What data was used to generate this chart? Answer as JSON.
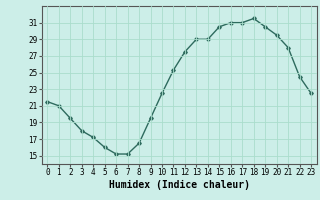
{
  "xlabel": "Humidex (Indice chaleur)",
  "x": [
    0,
    1,
    2,
    3,
    4,
    5,
    6,
    7,
    8,
    9,
    10,
    11,
    12,
    13,
    14,
    15,
    16,
    17,
    18,
    19,
    20,
    21,
    22,
    23
  ],
  "y": [
    21.5,
    21.0,
    19.5,
    18.0,
    17.2,
    16.0,
    15.2,
    15.2,
    16.5,
    19.5,
    22.5,
    25.3,
    27.5,
    29.0,
    29.0,
    30.5,
    31.0,
    31.0,
    31.5,
    30.5,
    29.5,
    28.0,
    24.5,
    22.5
  ],
  "ylim": [
    14,
    33
  ],
  "xlim": [
    -0.5,
    23.5
  ],
  "yticks": [
    15,
    17,
    19,
    21,
    23,
    25,
    27,
    29,
    31
  ],
  "xticks": [
    0,
    1,
    2,
    3,
    4,
    5,
    6,
    7,
    8,
    9,
    10,
    11,
    12,
    13,
    14,
    15,
    16,
    17,
    18,
    19,
    20,
    21,
    22,
    23
  ],
  "line_color": "#2e6b5e",
  "marker": "D",
  "marker_size": 1.8,
  "background_color": "#cceee8",
  "grid_color": "#aaddcc",
  "axis_color": "#555555",
  "tick_fontsize": 5.5,
  "xlabel_fontsize": 7,
  "linewidth": 1.0
}
